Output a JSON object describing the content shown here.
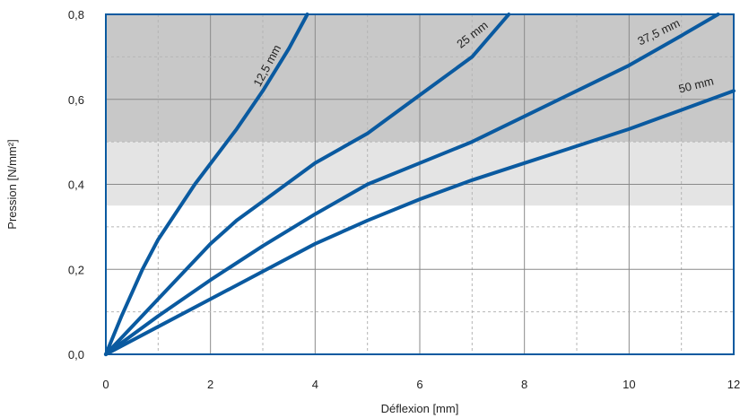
{
  "chart_data": {
    "type": "line",
    "title": "",
    "xlabel": "Déflexion [mm]",
    "ylabel": "Pression [N/mm²]",
    "xlim": [
      0,
      12
    ],
    "ylim": [
      0,
      0.8
    ],
    "x_ticks": [
      0,
      2,
      4,
      6,
      8,
      10,
      12
    ],
    "x_tick_labels": [
      "0",
      "2",
      "4",
      "6",
      "8",
      "10",
      "12"
    ],
    "y_ticks": [
      0,
      0.2,
      0.4,
      0.6,
      0.8
    ],
    "y_tick_labels": [
      "0,0",
      "0,2",
      "0,4",
      "0,6",
      "0,8"
    ],
    "grid": "major solid, minor dashed",
    "bands": [
      {
        "y_from": 0.5,
        "y_to": 0.8,
        "color": "#c8c8c8"
      },
      {
        "y_from": 0.35,
        "y_to": 0.5,
        "color": "#e4e4e4"
      }
    ],
    "series_color": "#0a5aa0",
    "series": [
      {
        "name": "12,5 mm",
        "x": [
          0,
          0.3,
          0.7,
          1.0,
          1.7,
          2.5,
          3.0,
          3.5,
          3.85
        ],
        "y": [
          0,
          0.09,
          0.2,
          0.27,
          0.4,
          0.53,
          0.62,
          0.72,
          0.8
        ]
      },
      {
        "name": "25 mm",
        "x": [
          0,
          1.0,
          2.0,
          2.5,
          3.0,
          4.0,
          5.0,
          6.0,
          7.0,
          7.7
        ],
        "y": [
          0,
          0.13,
          0.26,
          0.315,
          0.36,
          0.45,
          0.52,
          0.61,
          0.7,
          0.8
        ]
      },
      {
        "name": "37,5 mm",
        "x": [
          0,
          1.0,
          2.0,
          3.0,
          4.0,
          5.0,
          6.0,
          7.0,
          8.0,
          9.0,
          10.0,
          11.0,
          11.7
        ],
        "y": [
          0,
          0.09,
          0.175,
          0.255,
          0.33,
          0.4,
          0.45,
          0.5,
          0.56,
          0.62,
          0.68,
          0.75,
          0.8
        ]
      },
      {
        "name": "50 mm",
        "x": [
          0,
          1.0,
          2.0,
          3.0,
          4.0,
          5.0,
          6.0,
          7.0,
          8.0,
          9.0,
          10.0,
          11.0,
          12.0
        ],
        "y": [
          0,
          0.065,
          0.13,
          0.195,
          0.26,
          0.315,
          0.365,
          0.41,
          0.45,
          0.49,
          0.53,
          0.575,
          0.62
        ]
      }
    ]
  }
}
